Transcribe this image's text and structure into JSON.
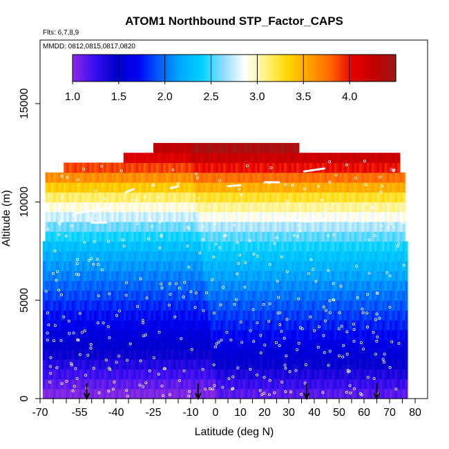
{
  "chart_data": {
    "type": "heatmap",
    "title": "ATOM1 Northbound STP_Factor_CAPS",
    "flights_note": "Flts: 6,7,8,9",
    "dates_note": "MMDD: 0812,0815,0817,0820",
    "xlabel": "Latitude (deg N)",
    "ylabel": "Altitude (m)",
    "xlim": [
      -70,
      80
    ],
    "ylim": [
      0,
      17500
    ],
    "x_tick_labels": [
      "-70",
      "-55",
      "-40",
      "-25",
      "-10",
      "0",
      "10",
      "20",
      "30",
      "40",
      "50",
      "60",
      "70",
      "80"
    ],
    "x_tick_values": [
      -70,
      -55,
      -40,
      -25,
      -10,
      0,
      10,
      20,
      30,
      40,
      50,
      60,
      70,
      80
    ],
    "y_ticks": [
      0,
      5000,
      10000,
      15000
    ],
    "y_tick_labels": [
      "0",
      "5000",
      "10000",
      "15000"
    ],
    "colorbar": {
      "range": [
        1.0,
        4.5
      ],
      "tick_values": [
        1.0,
        1.5,
        2.0,
        2.5,
        3.0,
        3.5,
        4.0
      ],
      "tick_labels": [
        "1.0",
        "1.5",
        "2.0",
        "2.5",
        "3.0",
        "3.5",
        "4.0"
      ],
      "colors": [
        "#8a2be2",
        "#3a0ef2",
        "#0000c8",
        "#0000f0",
        "#005cff",
        "#00a8ff",
        "#00d2ff",
        "#8fdcff",
        "#ffffff",
        "#fff27a",
        "#ffd600",
        "#ffa000",
        "#ff6400",
        "#e60000",
        "#c00000",
        "#9a1a1a"
      ]
    },
    "value_by_altitude": [
      {
        "z": 250,
        "v": 1.15
      },
      {
        "z": 750,
        "v": 1.25
      },
      {
        "z": 1250,
        "v": 1.35
      },
      {
        "z": 1750,
        "v": 1.45
      },
      {
        "z": 2250,
        "v": 1.55
      },
      {
        "z": 2750,
        "v": 1.62
      },
      {
        "z": 3250,
        "v": 1.7
      },
      {
        "z": 3750,
        "v": 1.78
      },
      {
        "z": 4250,
        "v": 1.85
      },
      {
        "z": 4750,
        "v": 1.92
      },
      {
        "z": 5250,
        "v": 2.0
      },
      {
        "z": 5750,
        "v": 2.08
      },
      {
        "z": 6250,
        "v": 2.16
      },
      {
        "z": 6750,
        "v": 2.24
      },
      {
        "z": 7250,
        "v": 2.32
      },
      {
        "z": 7750,
        "v": 2.42
      },
      {
        "z": 8250,
        "v": 2.55
      },
      {
        "z": 8750,
        "v": 2.7
      },
      {
        "z": 9250,
        "v": 2.88
      },
      {
        "z": 9750,
        "v": 3.05
      },
      {
        "z": 10250,
        "v": 3.25
      },
      {
        "z": 10750,
        "v": 3.5
      },
      {
        "z": 11250,
        "v": 3.75
      },
      {
        "z": 11750,
        "v": 4.0
      },
      {
        "z": 12250,
        "v": 4.2
      },
      {
        "z": 12750,
        "v": 4.4
      }
    ],
    "column_tops": [
      {
        "lat_from": -68,
        "lat_to": -65,
        "z_top": 11500
      },
      {
        "lat_from": -65,
        "lat_to": -61,
        "z_top": 11500
      },
      {
        "lat_from": -61,
        "lat_to": -37,
        "z_top": 12000
      },
      {
        "lat_from": -37,
        "lat_to": -25,
        "z_top": 12500
      },
      {
        "lat_from": -25,
        "lat_to": -6,
        "z_top": 13000
      },
      {
        "lat_from": -6,
        "lat_to": 34,
        "z_top": 13000
      },
      {
        "lat_from": 34,
        "lat_to": 47,
        "z_top": 12500
      },
      {
        "lat_from": 47,
        "lat_to": 74,
        "z_top": 12500
      },
      {
        "lat_from": 74,
        "lat_to": 76,
        "z_top": 11500
      }
    ],
    "wide_section": {
      "lat_from": -69,
      "lat_to": 77,
      "z_top": 8000
    },
    "flight_marker_latitudes": [
      -52,
      -7,
      37,
      65
    ]
  }
}
